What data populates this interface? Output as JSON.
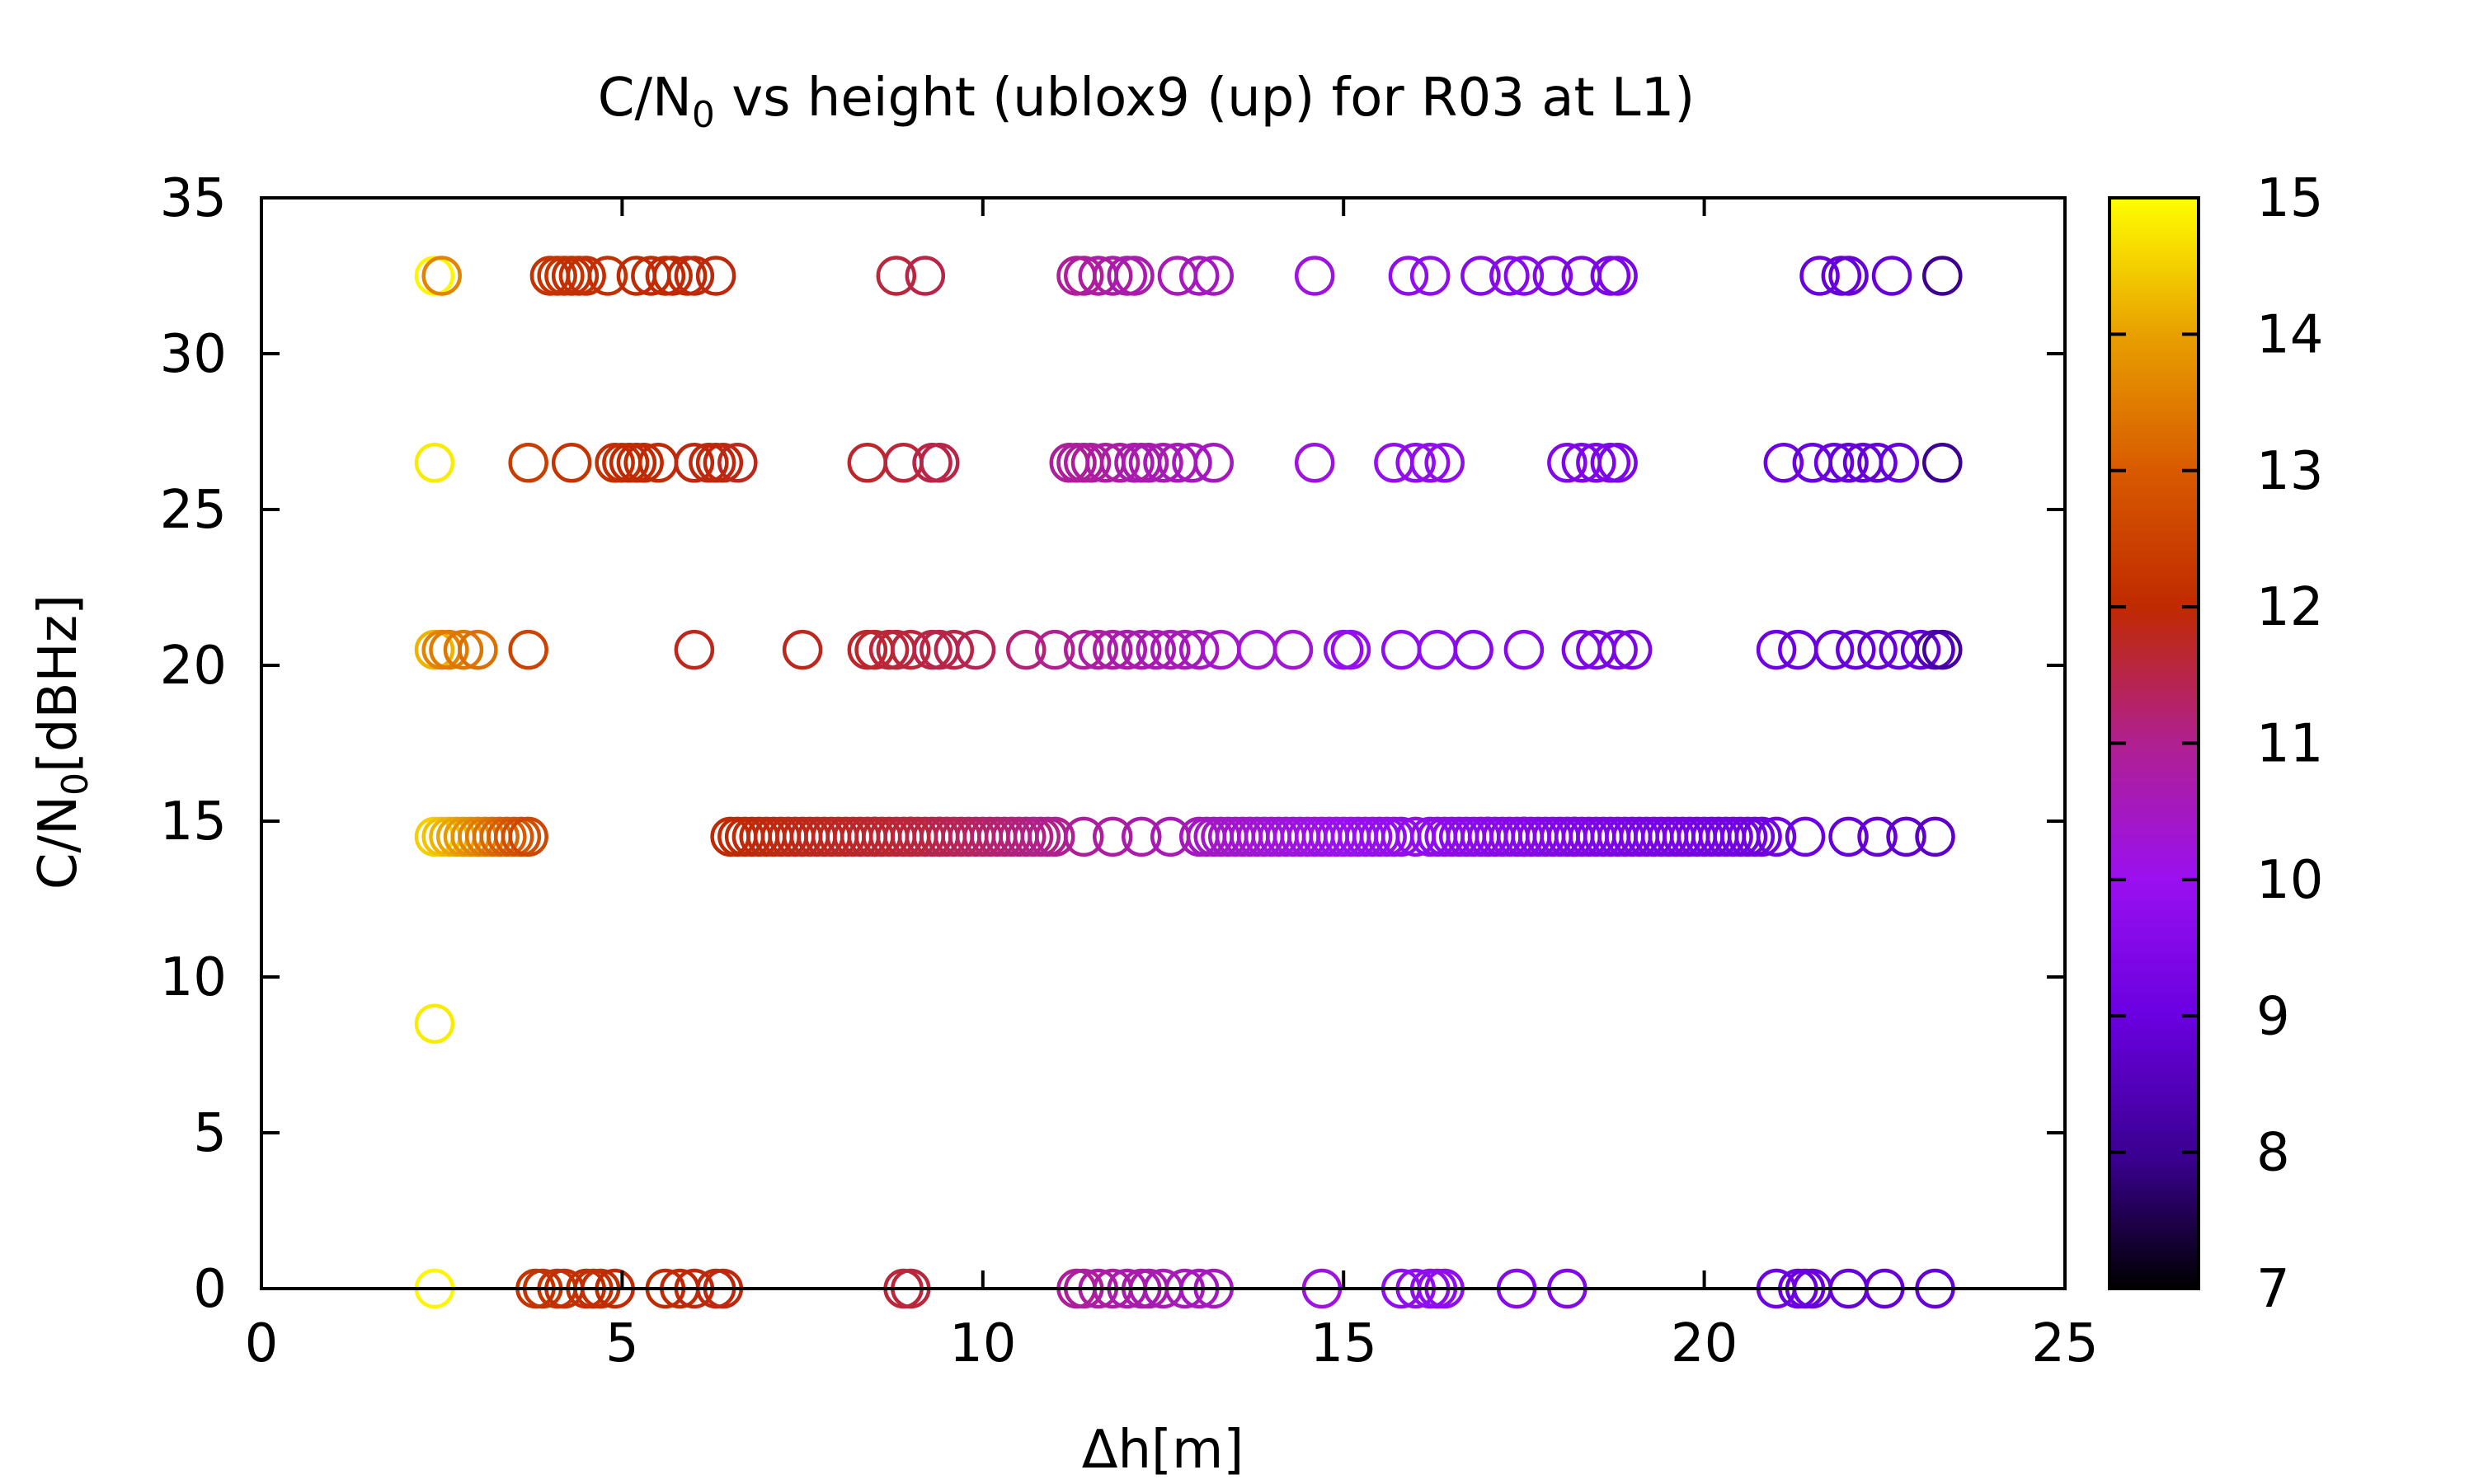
{
  "chart_data": {
    "type": "scatter",
    "title_prefix": "C/N",
    "title_sub": "0",
    "title_suffix": " vs height (ublox9 (up) for R03 at L1)",
    "xlabel": "Δh[m]",
    "ylabel_prefix": "C/N",
    "ylabel_sub": "0",
    "ylabel_suffix": "[dBHz]",
    "xlim": [
      0,
      25
    ],
    "ylim": [
      0,
      35
    ],
    "x_ticks": [
      0,
      5,
      10,
      15,
      20,
      25
    ],
    "y_ticks": [
      0,
      5,
      10,
      15,
      20,
      25,
      30,
      35
    ],
    "colorbar": {
      "range": [
        7,
        15
      ],
      "ticks": [
        7,
        8,
        9,
        10,
        11,
        12,
        13,
        14,
        15
      ],
      "palette": "gnuplot default (black-blue-violet-red-orange-yellow)"
    },
    "grid": false,
    "marker": "open circle",
    "series_by_cn0": [
      {
        "cn0": 32.5,
        "x": [
          2.4,
          2.5,
          4.0,
          4.1,
          4.2,
          4.3,
          4.4,
          4.5,
          4.8,
          5.2,
          5.4,
          5.6,
          5.7,
          5.9,
          6.0,
          6.3,
          8.8,
          9.2,
          11.3,
          11.4,
          11.6,
          11.8,
          12.0,
          12.1,
          12.7,
          13.0,
          13.2,
          14.6,
          15.9,
          16.2,
          16.9,
          17.3,
          17.5,
          17.9,
          18.3,
          18.7,
          18.8,
          21.6,
          21.9,
          22.0,
          22.6,
          23.3
        ],
        "z": [
          14.9,
          13.6,
          12.2,
          12.2,
          12.2,
          12.1,
          12.1,
          12.1,
          12.1,
          12.0,
          12.0,
          12.0,
          12.0,
          12.0,
          11.9,
          11.9,
          11.6,
          11.5,
          10.9,
          10.9,
          10.8,
          10.8,
          10.7,
          10.7,
          10.6,
          10.5,
          10.5,
          10.2,
          9.8,
          9.8,
          9.6,
          9.6,
          9.6,
          9.5,
          9.4,
          9.4,
          9.4,
          9.0,
          8.9,
          8.9,
          8.9,
          8.0
        ]
      },
      {
        "cn0": 26.5,
        "x": [
          2.4,
          3.7,
          4.3,
          4.9,
          5.0,
          5.1,
          5.2,
          5.3,
          5.5,
          6.0,
          6.2,
          6.3,
          6.4,
          6.6,
          8.4,
          8.9,
          9.3,
          9.4,
          11.2,
          11.3,
          11.4,
          11.5,
          11.7,
          11.9,
          12.1,
          12.2,
          12.3,
          12.5,
          12.7,
          12.9,
          13.2,
          14.6,
          15.7,
          16.0,
          16.2,
          16.4,
          18.1,
          18.3,
          18.5,
          18.7,
          18.8,
          21.1,
          21.5,
          21.8,
          22.0,
          22.2,
          22.4,
          22.7,
          23.3
        ],
        "z": [
          14.8,
          12.4,
          12.2,
          12.1,
          12.1,
          12.0,
          12.0,
          12.0,
          12.0,
          11.9,
          11.9,
          11.9,
          11.9,
          11.8,
          11.7,
          11.6,
          11.5,
          11.5,
          10.9,
          10.9,
          10.9,
          10.9,
          10.8,
          10.8,
          10.7,
          10.7,
          10.7,
          10.6,
          10.6,
          10.5,
          10.5,
          10.2,
          9.9,
          9.8,
          9.8,
          9.8,
          9.5,
          9.4,
          9.4,
          9.4,
          9.4,
          9.1,
          9.0,
          9.0,
          8.9,
          8.9,
          8.9,
          8.9,
          8.0
        ]
      },
      {
        "cn0": 20.5,
        "x": [
          2.4,
          2.5,
          2.6,
          2.8,
          3.0,
          3.7,
          6.0,
          7.5,
          8.4,
          8.5,
          8.7,
          8.8,
          9.0,
          9.3,
          9.4,
          9.6,
          9.9,
          10.6,
          11.0,
          11.4,
          11.6,
          11.8,
          12.0,
          12.2,
          12.4,
          12.6,
          12.8,
          13.0,
          13.3,
          13.8,
          14.3,
          15.0,
          15.1,
          15.8,
          16.3,
          16.8,
          17.5,
          18.3,
          18.5,
          18.8,
          19.0,
          21.0,
          21.3,
          21.8,
          22.1,
          22.4,
          22.7,
          23.0,
          23.2,
          23.3
        ],
        "z": [
          14.2,
          13.6,
          13.5,
          13.4,
          13.3,
          12.5,
          11.8,
          11.8,
          11.7,
          11.7,
          11.6,
          11.6,
          11.6,
          11.5,
          11.5,
          11.5,
          11.4,
          11.2,
          11.0,
          10.9,
          10.8,
          10.8,
          10.7,
          10.7,
          10.6,
          10.6,
          10.6,
          10.5,
          10.4,
          10.3,
          10.3,
          9.9,
          9.9,
          9.8,
          9.8,
          9.6,
          9.6,
          9.4,
          9.4,
          9.4,
          9.4,
          9.1,
          9.0,
          9.0,
          8.9,
          8.9,
          8.9,
          8.9,
          8.5,
          8.2
        ]
      },
      {
        "cn0": 14.5,
        "x_start": 2.4,
        "x_end": 23.3,
        "continuous_ranges": [
          [
            2.4,
            3.7
          ],
          [
            6.5,
            9.4
          ],
          [
            9.4,
            11.0
          ],
          [
            13.0,
            15.8
          ],
          [
            16.2,
            20.8
          ]
        ],
        "sparse_x": [
          8.5,
          9.0,
          11.4,
          11.8,
          12.2,
          12.6,
          16.0,
          17.0,
          17.5,
          18.2,
          21.0,
          21.4,
          22.0,
          22.4,
          22.8,
          23.2
        ]
      },
      {
        "cn0": 8.5,
        "x": [
          2.4
        ],
        "z": [
          14.8
        ]
      },
      {
        "cn0": 0,
        "x": [
          2.4,
          3.8,
          3.9,
          4.1,
          4.2,
          4.5,
          4.6,
          4.7,
          4.9,
          5.6,
          5.8,
          6.0,
          6.3,
          6.4,
          8.9,
          9.0,
          11.3,
          11.4,
          11.6,
          11.8,
          12.0,
          12.2,
          12.3,
          12.5,
          12.8,
          13.0,
          13.2,
          14.7,
          15.8,
          16.0,
          16.2,
          16.3,
          16.4,
          17.4,
          18.1,
          21.0,
          21.3,
          21.4,
          21.5,
          22.0,
          22.5,
          23.2
        ],
        "z": [
          14.9,
          12.2,
          12.2,
          12.2,
          12.1,
          12.1,
          12.1,
          12.1,
          12.0,
          12.0,
          12.0,
          11.9,
          11.9,
          11.9,
          11.6,
          11.6,
          10.9,
          10.9,
          10.8,
          10.8,
          10.7,
          10.7,
          10.7,
          10.6,
          10.6,
          10.5,
          10.5,
          10.2,
          9.8,
          9.8,
          9.8,
          9.8,
          9.8,
          9.6,
          9.5,
          9.1,
          9.0,
          9.0,
          9.0,
          8.9,
          8.9,
          8.9
        ]
      }
    ]
  }
}
